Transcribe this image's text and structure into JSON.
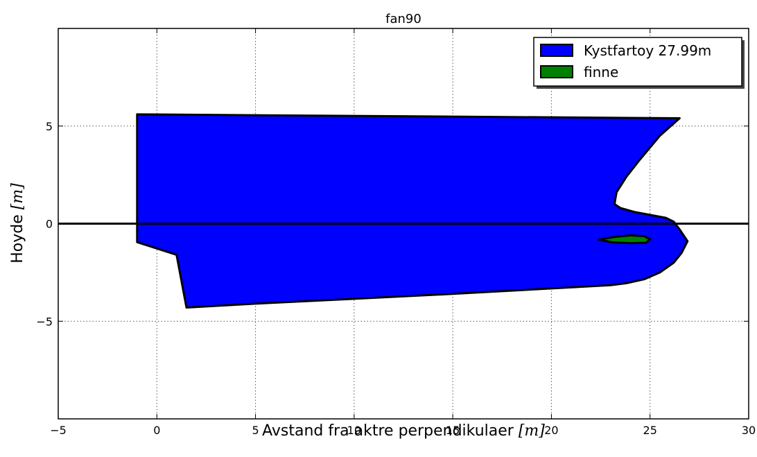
{
  "chart_data": {
    "type": "area",
    "title": "fan90",
    "xlabel": "Avstand fra aktre perpendikulaer",
    "xunit": "[m]",
    "ylabel": "Hoyde",
    "yunit": "[m]",
    "xlim": [
      -5,
      30
    ],
    "ylim": [
      -10,
      10
    ],
    "xticks": [
      -5,
      0,
      5,
      10,
      15,
      20,
      25,
      30
    ],
    "xtick_labels": [
      "−5",
      "0",
      "5",
      "10",
      "15",
      "20",
      "25",
      "30"
    ],
    "yticks": [
      -5,
      0,
      5
    ],
    "ytick_labels": [
      "−5",
      "0",
      "5"
    ],
    "grid": true,
    "legend_position": "upper right",
    "waterline_y": 0,
    "series": [
      {
        "name": "Kystfartoy 27.99m",
        "color": "#0000ff",
        "x": [
          -1.0,
          26.5,
          25.5,
          24.5,
          23.8,
          23.3,
          23.2,
          23.5,
          24.2,
          25.0,
          25.8,
          26.2,
          26.5,
          26.9,
          26.6,
          26.2,
          25.5,
          24.7,
          23.8,
          23.0,
          15.0,
          5.0,
          1.5,
          1.0,
          -1.0,
          -1.0
        ],
        "y": [
          5.6,
          5.4,
          4.5,
          3.3,
          2.4,
          1.6,
          1.0,
          0.8,
          0.6,
          0.45,
          0.3,
          0.1,
          -0.3,
          -0.9,
          -1.5,
          -2.0,
          -2.5,
          -2.85,
          -3.05,
          -3.15,
          -3.6,
          -4.1,
          -4.3,
          -1.6,
          -0.95,
          5.6
        ]
      },
      {
        "name": "finne",
        "color": "#008000",
        "x": [
          22.4,
          23.2,
          24.0,
          24.7,
          25.0,
          24.8,
          24.0,
          23.1,
          22.4
        ],
        "y": [
          -0.82,
          -0.68,
          -0.6,
          -0.64,
          -0.8,
          -0.98,
          -1.0,
          -0.96,
          -0.82
        ]
      }
    ]
  }
}
